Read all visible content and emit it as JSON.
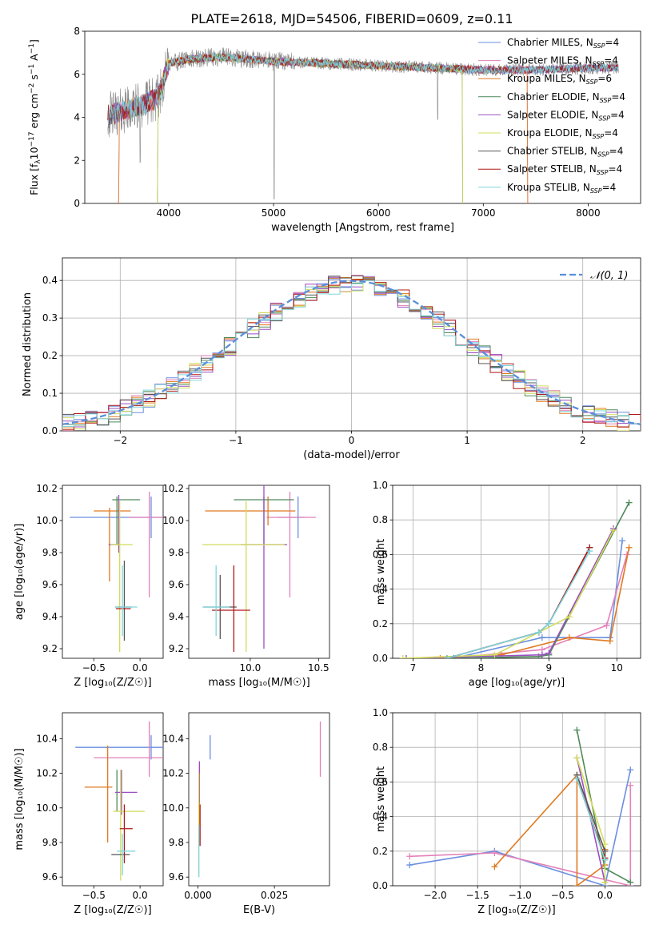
{
  "figure": {
    "title": "PLATE=2618, MJD=54506, FIBERID=0609, z=0.11"
  },
  "legend": [
    {
      "label": "Chabrier MILES, N",
      "sub": "SSP",
      "tail": "=4",
      "color": "#6b8fe0"
    },
    {
      "label": "Salpeter MILES, N",
      "sub": "SSP",
      "tail": "=4",
      "color": "#e381b9"
    },
    {
      "label": "Kroupa MILES, N",
      "sub": "SSP",
      "tail": "=6",
      "color": "#e07a20"
    },
    {
      "label": "Chabrier ELODIE, N",
      "sub": "SSP",
      "tail": "=4",
      "color": "#4f8a5a"
    },
    {
      "label": "Salpeter ELODIE, N",
      "sub": "SSP",
      "tail": "=4",
      "color": "#9a4fc2"
    },
    {
      "label": "Kroupa ELODIE, N",
      "sub": "SSP",
      "tail": "=4",
      "color": "#d2dc5a"
    },
    {
      "label": "Chabrier STELIB, N",
      "sub": "SSP",
      "tail": "=4",
      "color": "#555555"
    },
    {
      "label": "Salpeter STELIB, N",
      "sub": "SSP",
      "tail": "=4",
      "color": "#b01818"
    },
    {
      "label": "Kroupa STELIB, N",
      "sub": "SSP",
      "tail": "=4",
      "color": "#7fd6dc"
    }
  ],
  "chart_data": [
    {
      "id": "spectrum",
      "type": "line",
      "xlabel": "wavelength [Angstrom, rest frame]",
      "ylabel_parts": [
        "Flux [f",
        "λ",
        "10",
        "−17",
        " erg cm",
        "−2",
        " s",
        "−1",
        " A",
        "−1",
        "]"
      ],
      "xlim": [
        3200,
        8500
      ],
      "ylim": [
        0,
        8
      ],
      "xticks": [
        4000,
        5000,
        6000,
        7000,
        8000
      ],
      "yticks": [
        0,
        2,
        4,
        6,
        8
      ],
      "data_color": "#888888",
      "wavelength_range": [
        3420,
        8290
      ],
      "model_anchor_points": {
        "x": [
          3420,
          3500,
          3700,
          3900,
          4000,
          4200,
          4500,
          5000,
          5500,
          6000,
          6500,
          7000,
          7500,
          8000,
          8290
        ],
        "y": [
          4.1,
          4.2,
          4.5,
          4.9,
          6.5,
          6.7,
          6.8,
          6.6,
          6.5,
          6.4,
          6.3,
          6.2,
          6.2,
          6.3,
          6.3
        ]
      },
      "model_cutoffs": [
        {
          "model": "Kroupa MILES",
          "color": "#e07a20",
          "xmin": 3530,
          "xmax": 7420
        },
        {
          "model": "Salpeter MILES",
          "color": "#e381b9",
          "xmin": 3530,
          "xmax": 7420
        },
        {
          "model": "Kroupa ELODIE",
          "color": "#d2dc5a",
          "xmin": 3900,
          "xmax": 6800
        },
        {
          "model": "Chabrier ELODIE",
          "color": "#4f8a5a",
          "xmin": 3900,
          "xmax": 6800
        }
      ]
    },
    {
      "id": "residuals",
      "type": "step",
      "xlabel": "(data-model)/error",
      "ylabel": "Normed distribution",
      "xlim": [
        -2.5,
        2.5
      ],
      "ylim": [
        0,
        0.46
      ],
      "xticks": [
        -2,
        -1,
        0,
        1,
        2
      ],
      "xtick_labels": [
        "−2",
        "−1",
        "0",
        "1",
        "2"
      ],
      "yticks": [
        0.0,
        0.1,
        0.2,
        0.3,
        0.4
      ],
      "ytick_labels": [
        "0.0",
        "0.1",
        "0.2",
        "0.3",
        "0.4"
      ],
      "bin_width": 0.1,
      "gaussian_label": "𝒩(0, 1)",
      "gaussian_color": "#5b8fd9"
    },
    {
      "id": "age-vs-Z",
      "type": "errorbar",
      "xlabel": "Z [log₁₀(Z/Z☉)]",
      "ylabel": "age  [log₁₀(age/yr)]",
      "xlim": [
        -0.84,
        0.25
      ],
      "ylim": [
        9.14,
        10.22
      ],
      "xticks": [
        -0.5,
        0.0
      ],
      "xtick_labels": [
        "−0.5",
        "0.0"
      ],
      "yticks": [
        9.2,
        9.4,
        9.6,
        9.8,
        10.0,
        10.2
      ],
      "points": [
        {
          "c": "#6b8fe0",
          "x": 0.02,
          "xerr": 0.78,
          "y": 10.02,
          "yerr": 0.0
        },
        {
          "c": "#6b8fe0",
          "x": 0.12,
          "xerr": 0.0,
          "y": 10.02,
          "yerr": 0.13
        },
        {
          "c": "#e381b9",
          "x": 0.08,
          "xerr": 0.2,
          "y": 10.02,
          "yerr": 0.0
        },
        {
          "c": "#e381b9",
          "x": 0.1,
          "xerr": 0.0,
          "y": 9.85,
          "yerr": 0.33
        },
        {
          "c": "#e07a20",
          "x": -0.3,
          "xerr": 0.2,
          "y": 10.06,
          "yerr": 0.0
        },
        {
          "c": "#e07a20",
          "x": -0.33,
          "xerr": 0.0,
          "y": 9.85,
          "yerr": 0.23
        },
        {
          "c": "#4f8a5a",
          "x": -0.15,
          "xerr": 0.15,
          "y": 10.13,
          "yerr": 0.0
        },
        {
          "c": "#4f8a5a",
          "x": -0.25,
          "xerr": 0.0,
          "y": 10.0,
          "yerr": 0.15
        },
        {
          "c": "#9a4fc2",
          "x": -0.28,
          "xerr": 0.06,
          "y": 9.85,
          "yerr": 0.0
        },
        {
          "c": "#9a4fc2",
          "x": -0.23,
          "xerr": 0.0,
          "y": 9.98,
          "yerr": 0.18
        },
        {
          "c": "#d2dc5a",
          "x": -0.2,
          "xerr": 0.12,
          "y": 9.85,
          "yerr": 0.0
        },
        {
          "c": "#d2dc5a",
          "x": -0.22,
          "xerr": 0.0,
          "y": 9.65,
          "yerr": 0.47
        },
        {
          "c": "#555555",
          "x": -0.17,
          "xerr": 0.0,
          "y": 9.5,
          "yerr": 0.25
        },
        {
          "c": "#555555",
          "x": -0.18,
          "xerr": 0.09,
          "y": 9.46,
          "yerr": 0.0
        },
        {
          "c": "#b01818",
          "x": -0.18,
          "xerr": 0.08,
          "y": 9.45,
          "yerr": 0.0
        },
        {
          "c": "#7fd6dc",
          "x": -0.19,
          "xerr": 0.0,
          "y": 9.5,
          "yerr": 0.22
        },
        {
          "c": "#7fd6dc",
          "x": -0.15,
          "xerr": 0.12,
          "y": 9.46,
          "yerr": 0.0
        }
      ]
    },
    {
      "id": "age-vs-mass",
      "type": "errorbar",
      "xlabel": "mass [log₁₀(M/M☉)]",
      "ylabel": "",
      "xlim": [
        9.55,
        10.58
      ],
      "ylim": [
        9.14,
        10.22
      ],
      "xticks": [
        10.0,
        10.5
      ],
      "xtick_labels": [
        "10.0",
        "10.5"
      ],
      "yticks": [
        9.2,
        9.4,
        9.6,
        9.8,
        10.0,
        10.2
      ],
      "points": [
        {
          "c": "#6b8fe0",
          "x": 10.35,
          "xerr": 0.0,
          "y": 10.02,
          "yerr": 0.13
        },
        {
          "c": "#6b8fe0",
          "x": 10.3,
          "xerr": 0.1,
          "y": 10.02,
          "yerr": 0.0
        },
        {
          "c": "#e381b9",
          "x": 10.3,
          "xerr": 0.18,
          "y": 10.02,
          "yerr": 0.0
        },
        {
          "c": "#e381b9",
          "x": 10.29,
          "xerr": 0.0,
          "y": 9.85,
          "yerr": 0.33
        },
        {
          "c": "#e07a20",
          "x": 10.0,
          "xerr": 0.33,
          "y": 10.06,
          "yerr": 0.0
        },
        {
          "c": "#e07a20",
          "x": 10.13,
          "xerr": 0.0,
          "y": 10.06,
          "yerr": 0.09
        },
        {
          "c": "#4f8a5a",
          "x": 10.1,
          "xerr": 0.22,
          "y": 10.13,
          "yerr": 0.0
        },
        {
          "c": "#4f8a5a",
          "x": 10.1,
          "xerr": 0.0,
          "y": 10.0,
          "yerr": 0.15
        },
        {
          "c": "#9a4fc2",
          "x": 10.1,
          "xerr": 0.17,
          "y": 9.85,
          "yerr": 0.0
        },
        {
          "c": "#9a4fc2",
          "x": 10.1,
          "xerr": 0.0,
          "y": 9.75,
          "yerr": 0.55
        },
        {
          "c": "#d2dc5a",
          "x": 9.95,
          "xerr": 0.3,
          "y": 9.85,
          "yerr": 0.0
        },
        {
          "c": "#d2dc5a",
          "x": 9.97,
          "xerr": 0.0,
          "y": 9.65,
          "yerr": 0.47
        },
        {
          "c": "#555555",
          "x": 9.78,
          "xerr": 0.12,
          "y": 9.46,
          "yerr": 0.0
        },
        {
          "c": "#555555",
          "x": 9.78,
          "xerr": 0.0,
          "y": 9.46,
          "yerr": 0.2
        },
        {
          "c": "#b01818",
          "x": 9.86,
          "xerr": 0.14,
          "y": 9.44,
          "yerr": 0.0
        },
        {
          "c": "#b01818",
          "x": 9.88,
          "xerr": 0.0,
          "y": 9.45,
          "yerr": 0.27
        },
        {
          "c": "#7fd6dc",
          "x": 9.75,
          "xerr": 0.0,
          "y": 9.5,
          "yerr": 0.22
        },
        {
          "c": "#7fd6dc",
          "x": 9.75,
          "xerr": 0.1,
          "y": 9.46,
          "yerr": 0.0
        }
      ]
    },
    {
      "id": "massweight-vs-age",
      "type": "line",
      "xlabel": "age  [log₁₀(age/yr)]",
      "ylabel": "mass weight",
      "xlim": [
        6.7,
        10.35
      ],
      "ylim": [
        0,
        1
      ],
      "xticks": [
        7,
        8,
        9,
        10
      ],
      "yticks": [
        0.0,
        0.2,
        0.4,
        0.6,
        0.8,
        1.0
      ],
      "series": [
        {
          "c": "#6b8fe0",
          "x": [
            7.6,
            8.9,
            9.9,
            10.08
          ],
          "y": [
            0.0,
            0.12,
            0.12,
            0.68
          ]
        },
        {
          "c": "#e381b9",
          "x": [
            7.5,
            8.9,
            9.85,
            10.15
          ],
          "y": [
            0.0,
            0.05,
            0.19,
            0.6
          ]
        },
        {
          "c": "#e07a20",
          "x": [
            7.4,
            8.3,
            9.3,
            9.9,
            10.18
          ],
          "y": [
            0.0,
            0.02,
            0.12,
            0.1,
            0.64
          ]
        },
        {
          "c": "#4f8a5a",
          "x": [
            7.6,
            8.85,
            9.0,
            10.18
          ],
          "y": [
            0.0,
            0.01,
            0.02,
            0.9
          ]
        },
        {
          "c": "#9a4fc2",
          "x": [
            6.9,
            8.9,
            9.0,
            9.95
          ],
          "y": [
            0.0,
            0.02,
            0.03,
            0.75
          ]
        },
        {
          "c": "#d2dc5a",
          "x": [
            6.85,
            8.2,
            9.3,
            9.95
          ],
          "y": [
            0.0,
            0.02,
            0.24,
            0.74
          ]
        },
        {
          "c": "#555555",
          "x": [
            7.5,
            8.85,
            9.0,
            9.6
          ],
          "y": [
            0.0,
            0.15,
            0.2,
            0.64
          ]
        },
        {
          "c": "#b01818",
          "x": [
            7.5,
            8.85,
            9.0,
            9.6
          ],
          "y": [
            0.0,
            0.15,
            0.2,
            0.64
          ]
        },
        {
          "c": "#7fd6dc",
          "x": [
            7.5,
            8.85,
            9.0,
            9.6
          ],
          "y": [
            0.0,
            0.15,
            0.2,
            0.62
          ]
        }
      ]
    },
    {
      "id": "mass-vs-Z",
      "type": "errorbar",
      "xlabel": "Z [log₁₀(Z/Z☉)]",
      "ylabel": "mass [log₁₀(M/M☉)]",
      "xlim": [
        -0.84,
        0.25
      ],
      "ylim": [
        9.55,
        10.55
      ],
      "xticks": [
        -0.5,
        0.0
      ],
      "xtick_labels": [
        "−0.5",
        "0.0"
      ],
      "yticks": [
        9.6,
        9.8,
        10.0,
        10.2,
        10.4
      ],
      "points": [
        {
          "c": "#6b8fe0",
          "x": -0.1,
          "xerr": 0.6,
          "y": 10.35,
          "yerr": 0.0
        },
        {
          "c": "#6b8fe0",
          "x": 0.12,
          "xerr": 0.0,
          "y": 10.35,
          "yerr": 0.07
        },
        {
          "c": "#e381b9",
          "x": -0.1,
          "xerr": 0.4,
          "y": 10.29,
          "yerr": 0.0
        },
        {
          "c": "#e381b9",
          "x": 0.1,
          "xerr": 0.0,
          "y": 10.34,
          "yerr": 0.16
        },
        {
          "c": "#e07a20",
          "x": -0.45,
          "xerr": 0.15,
          "y": 10.12,
          "yerr": 0.0
        },
        {
          "c": "#e07a20",
          "x": -0.35,
          "xerr": 0.0,
          "y": 10.08,
          "yerr": 0.28
        },
        {
          "c": "#4f8a5a",
          "x": -0.25,
          "xerr": 0.0,
          "y": 10.1,
          "yerr": 0.12
        },
        {
          "c": "#9a4fc2",
          "x": -0.15,
          "xerr": 0.12,
          "y": 10.09,
          "yerr": 0.0
        },
        {
          "c": "#9a4fc2",
          "x": -0.2,
          "xerr": 0.0,
          "y": 10.09,
          "yerr": 0.13
        },
        {
          "c": "#d2dc5a",
          "x": -0.12,
          "xerr": 0.17,
          "y": 9.98,
          "yerr": 0.0
        },
        {
          "c": "#d2dc5a",
          "x": -0.21,
          "xerr": 0.0,
          "y": 9.9,
          "yerr": 0.32
        },
        {
          "c": "#555555",
          "x": -0.21,
          "xerr": 0.1,
          "y": 9.73,
          "yerr": 0.0
        },
        {
          "c": "#b01818",
          "x": -0.15,
          "xerr": 0.07,
          "y": 9.88,
          "yerr": 0.0
        },
        {
          "c": "#b01818",
          "x": -0.17,
          "xerr": 0.0,
          "y": 9.85,
          "yerr": 0.17
        },
        {
          "c": "#7fd6dc",
          "x": -0.15,
          "xerr": 0.1,
          "y": 9.75,
          "yerr": 0.0
        },
        {
          "c": "#7fd6dc",
          "x": -0.19,
          "xerr": 0.0,
          "y": 9.73,
          "yerr": 0.12
        }
      ]
    },
    {
      "id": "mass-vs-ebv",
      "type": "errorbar",
      "xlabel": "E(B-V)",
      "ylabel": "",
      "xlim": [
        -0.003,
        0.043
      ],
      "ylim": [
        9.55,
        10.55
      ],
      "xticks": [
        0.0,
        0.025
      ],
      "xtick_labels": [
        "0.000",
        "0.025"
      ],
      "yticks": [
        9.6,
        9.8,
        10.0,
        10.2,
        10.4
      ],
      "points": [
        {
          "c": "#6b8fe0",
          "x": 0.004,
          "xerr": 0.0,
          "y": 10.35,
          "yerr": 0.07
        },
        {
          "c": "#e381b9",
          "x": 0.04,
          "xerr": 0.0,
          "y": 10.34,
          "yerr": 0.16
        },
        {
          "c": "#e07a20",
          "x": 0.0005,
          "xerr": 0.0,
          "y": 10.08,
          "yerr": 0.18
        },
        {
          "c": "#9a4fc2",
          "x": 0.0005,
          "xerr": 0.0,
          "y": 10.15,
          "yerr": 0.12
        },
        {
          "c": "#b01818",
          "x": 0.0007,
          "xerr": 0.0,
          "y": 9.9,
          "yerr": 0.12
        },
        {
          "c": "#d2dc5a",
          "x": 0.0003,
          "xerr": 0.0,
          "y": 9.9,
          "yerr": 0.3
        },
        {
          "c": "#7fd6dc",
          "x": 0.0003,
          "xerr": 0.0,
          "y": 9.75,
          "yerr": 0.15
        }
      ]
    },
    {
      "id": "massweight-vs-Z",
      "type": "line",
      "xlabel": "Z [log₁₀(Z/Z☉)]",
      "ylabel": "mass weight",
      "xlim": [
        -2.5,
        0.42
      ],
      "ylim": [
        0,
        1
      ],
      "xticks": [
        -2.0,
        -1.5,
        -1.0,
        -0.5,
        0.0
      ],
      "xtick_labels": [
        "−2.0",
        "−1.5",
        "−1.0",
        "−0.5",
        "0.0"
      ],
      "yticks": [
        0.0,
        0.2,
        0.4,
        0.6,
        0.8,
        1.0
      ],
      "series": [
        {
          "c": "#6b8fe0",
          "x": [
            -2.3,
            -1.3,
            0.0,
            0.3
          ],
          "y": [
            0.12,
            0.2,
            0.0,
            0.67
          ]
        },
        {
          "c": "#e381b9",
          "x": [
            -2.3,
            -1.3,
            0.3,
            0.3
          ],
          "y": [
            0.17,
            0.19,
            0.0,
            0.58
          ]
        },
        {
          "c": "#e07a20",
          "x": [
            -1.3,
            -0.33,
            -0.33,
            0.0,
            0.0
          ],
          "y": [
            0.11,
            0.64,
            0.0,
            0.12,
            0.21
          ]
        },
        {
          "c": "#4f8a5a",
          "x": [
            -0.33,
            0.0,
            0.3
          ],
          "y": [
            0.9,
            0.1,
            0.02
          ]
        },
        {
          "c": "#9a4fc2",
          "x": [
            -0.33,
            0.0
          ],
          "y": [
            0.74,
            0.02
          ]
        },
        {
          "c": "#d2dc5a",
          "x": [
            -0.33,
            0.0,
            0.0
          ],
          "y": [
            0.74,
            0.24,
            0.02
          ]
        },
        {
          "c": "#555555",
          "x": [
            -0.33,
            0.0,
            0.0
          ],
          "y": [
            0.64,
            0.2,
            0.15
          ]
        },
        {
          "c": "#b01818",
          "x": [
            -0.33,
            0.0
          ],
          "y": [
            0.62,
            0.16
          ]
        },
        {
          "c": "#7fd6dc",
          "x": [
            -0.33,
            0.0
          ],
          "y": [
            0.62,
            0.15
          ]
        }
      ]
    }
  ]
}
